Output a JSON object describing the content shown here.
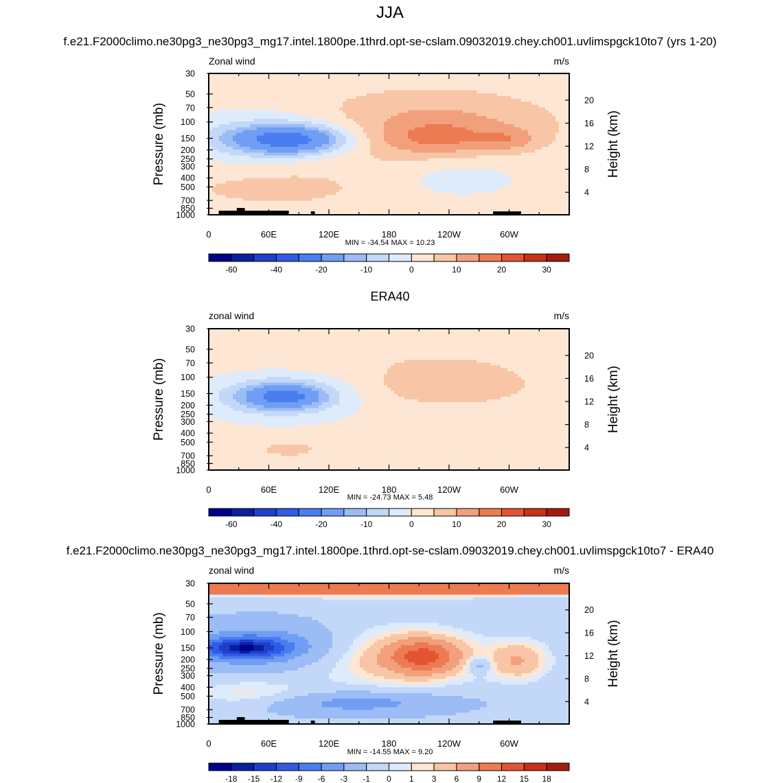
{
  "page": {
    "title": "JJA"
  },
  "colors": {
    "palette": [
      "#00008b",
      "#0a1fa0",
      "#1f3fcb",
      "#2f5be6",
      "#4a7ef0",
      "#6f9ef4",
      "#9bbcf5",
      "#c3d8f8",
      "#deebfb",
      "#fde6d4",
      "#f8c6a6",
      "#f2a07c",
      "#ec7b52",
      "#e35432",
      "#c73218",
      "#a51c0e",
      "#7a0a05"
    ],
    "land": "#000000",
    "frame": "#000000"
  },
  "panels": [
    {
      "id": "model",
      "title": "f.e21.F2000climo.ne30pg3_ne30pg3_mg17.intel.1800pe.1thrd.opt-se-cslam.09032019.chey.ch001.uvlimspgck10to7 (yrs 1-20)",
      "left_label": "Zonal wind",
      "right_label": "m/s",
      "y_title": "Pressure (mb)",
      "y2_title": "Height (km)",
      "stats": "MIN = -34.54  MAX =  10.23",
      "colorbar_labels": [
        "-60",
        "-40",
        "-20",
        "-10",
        "0",
        "10",
        "20",
        "30"
      ]
    },
    {
      "id": "obs",
      "title": "ERA40",
      "left_label": "zonal wind",
      "right_label": "m/s",
      "y_title": "Pressure (mb)",
      "y2_title": "Height (km)",
      "stats": "MIN = -24.73  MAX =   5.48",
      "colorbar_labels": [
        "-60",
        "-40",
        "-20",
        "-10",
        "0",
        "10",
        "20",
        "30"
      ]
    },
    {
      "id": "diff",
      "title": "f.e21.F2000climo.ne30pg3_ne30pg3_mg17.intel.1800pe.1thrd.opt-se-cslam.09032019.chey.ch001.uvlimspgck10to7 - ERA40",
      "left_label": "zonal wind",
      "right_label": "m/s",
      "y_title": "Pressure (mb)",
      "y2_title": "Height (km)",
      "stats": "MIN = -14.55  MAX =   9.20",
      "colorbar_labels": [
        "-18",
        "-15",
        "-12",
        "-9",
        "-6",
        "-3",
        "-1",
        "0",
        "1",
        "3",
        "6",
        "9",
        "12",
        "15",
        "18"
      ]
    }
  ],
  "axes": {
    "x_ticks": [
      {
        "lon": 0,
        "label": "0"
      },
      {
        "lon": 60,
        "label": "60E"
      },
      {
        "lon": 120,
        "label": "120E"
      },
      {
        "lon": 180,
        "label": "180"
      },
      {
        "lon": 240,
        "label": "120W"
      },
      {
        "lon": 300,
        "label": "60W"
      }
    ],
    "x_range": [
      0,
      360
    ],
    "p_labels": [
      30,
      50,
      70,
      100,
      150,
      200,
      250,
      300,
      400,
      500,
      700,
      850,
      1000
    ],
    "p_range": [
      30,
      1000
    ],
    "height_ticks": [
      4,
      8,
      12,
      16,
      20
    ]
  },
  "chart_data": [
    {
      "type": "heatmap",
      "title": "f.e21.F2000climo.ne30pg3_ne30pg3_mg17.intel.1800pe.1thrd.opt-se-cslam.09032019.chey.ch001.uvlimspgck10to7 (yrs 1-20)",
      "variable": "Zonal wind",
      "units": "m/s",
      "xlabel": "",
      "ylabel": "Pressure (mb)",
      "y2label": "Height (km)",
      "xlim": [
        0,
        360
      ],
      "ylim": [
        1000,
        30
      ],
      "levels": [
        -70,
        -60,
        -50,
        -40,
        -30,
        -20,
        -15,
        -10,
        -5,
        0,
        5,
        10,
        15,
        20,
        25,
        30,
        35
      ],
      "features": [
        {
          "lon": 70,
          "p": 150,
          "value": -34.5
        },
        {
          "lon": 210,
          "p": 150,
          "value": 10.2
        },
        {
          "lon": 305,
          "p": 150,
          "value": 8.0
        },
        {
          "lon": 55,
          "p": 600,
          "value": 7.0
        }
      ],
      "min": -34.54,
      "max": 10.23
    },
    {
      "type": "heatmap",
      "title": "ERA40",
      "variable": "zonal wind",
      "units": "m/s",
      "xlabel": "",
      "ylabel": "Pressure (mb)",
      "y2label": "Height (km)",
      "xlim": [
        0,
        360
      ],
      "ylim": [
        1000,
        30
      ],
      "levels": [
        -70,
        -60,
        -50,
        -40,
        -30,
        -20,
        -15,
        -10,
        -5,
        0,
        5,
        10,
        15,
        20,
        25,
        30,
        35
      ],
      "features": [
        {
          "lon": 75,
          "p": 150,
          "value": -24.7
        },
        {
          "lon": 235,
          "p": 130,
          "value": 5.5
        },
        {
          "lon": 80,
          "p": 700,
          "value": 4.5
        }
      ],
      "min": -24.73,
      "max": 5.48
    },
    {
      "type": "heatmap",
      "title": "f.e21.F2000climo.ne30pg3_ne30pg3_mg17.intel.1800pe.1thrd.opt-se-cslam.09032019.chey.ch001.uvlimspgck10to7 - ERA40",
      "variable": "zonal wind",
      "units": "m/s",
      "xlabel": "",
      "ylabel": "Pressure (mb)",
      "y2label": "Height (km)",
      "xlim": [
        0,
        360
      ],
      "ylim": [
        1000,
        30
      ],
      "levels": [
        -20,
        -18,
        -15,
        -12,
        -9,
        -6,
        -3,
        -1,
        0,
        1,
        3,
        6,
        9,
        12,
        15,
        18,
        20
      ],
      "features": [
        {
          "lon": 30,
          "p": 150,
          "value": -14.5
        },
        {
          "lon": 215,
          "p": 200,
          "value": 9.2
        },
        {
          "lon": 180,
          "p": 36,
          "value": 6.0
        }
      ],
      "min": -14.55,
      "max": 9.2
    }
  ]
}
